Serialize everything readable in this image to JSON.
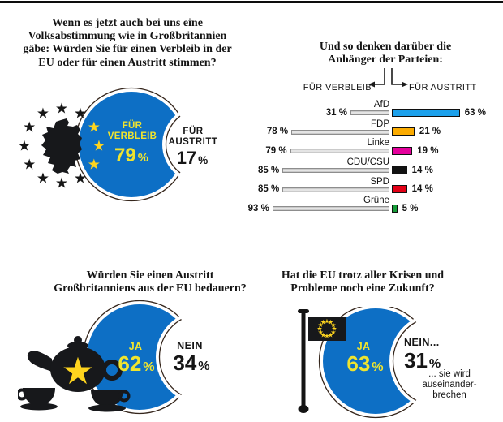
{
  "common": {
    "percent_sign": "%",
    "blue": "#0d6fc5",
    "ring_color": "#35261c",
    "star_yellow": "#fed41e",
    "text_yellow": "#efe42f",
    "ink": "#151515"
  },
  "q1": {
    "question": "Wenn es jetzt auch bei uns eine\nVolksabstimmung wie in Großbritannien\ngäbe: Würden Sie für einen Verbleib in der\nEU oder für einen Austritt stimmen?",
    "stay_label": "FÜR\nVERBLEIB",
    "stay_value": "79",
    "leave_label": "FÜR\nAUSTRITT",
    "leave_value": "17"
  },
  "q2": {
    "title": "Und so denken darüber die\nAnhänger der Parteien:",
    "legend_left": "FÜR VERBLEIB",
    "legend_right": "FÜR AUSTRITT",
    "parties": [
      {
        "name": "AfD",
        "stay": 31,
        "leave": 63,
        "color": "#1ca1ec"
      },
      {
        "name": "FDP",
        "stay": 78,
        "leave": 21,
        "color": "#fbab00"
      },
      {
        "name": "Linke",
        "stay": 79,
        "leave": 19,
        "color": "#e5009c"
      },
      {
        "name": "CDU/CSU",
        "stay": 85,
        "leave": 14,
        "color": "#121212"
      },
      {
        "name": "SPD",
        "stay": 85,
        "leave": 14,
        "color": "#e30016"
      },
      {
        "name": "Grüne",
        "stay": 93,
        "leave": 5,
        "color": "#169c37"
      }
    ]
  },
  "q3": {
    "question": "Würden Sie einen Austritt\nGroßbritanniens aus der EU bedauern?",
    "yes_label": "JA",
    "yes_value": "62",
    "no_label": "NEIN",
    "no_value": "34"
  },
  "q4": {
    "question": "Hat die EU trotz aller Krisen und\nProbleme noch eine Zukunft?",
    "yes_label": "JA",
    "yes_value": "63",
    "no_label": "NEIN...",
    "no_value": "31",
    "no_note": "... sie wird\nauseinander-\nbrechen"
  },
  "chart_data": [
    {
      "type": "pie",
      "title": "Wenn es jetzt auch bei uns eine Volksabstimmung wie in Großbritannien gäbe: Würden Sie für einen Verbleib in der EU oder für einen Austritt stimmen?",
      "slices": [
        {
          "label": "FÜR VERBLEIB",
          "value": 79
        },
        {
          "label": "FÜR AUSTRITT",
          "value": 17
        }
      ],
      "unit": "%"
    },
    {
      "type": "bar",
      "title": "Und so denken darüber die Anhänger der Parteien:",
      "categories": [
        "AfD",
        "FDP",
        "Linke",
        "CDU/CSU",
        "SPD",
        "Grüne"
      ],
      "series": [
        {
          "name": "FÜR VERBLEIB",
          "values": [
            31,
            78,
            79,
            85,
            85,
            93
          ]
        },
        {
          "name": "FÜR AUSTRITT",
          "values": [
            63,
            21,
            19,
            14,
            14,
            5
          ]
        }
      ],
      "unit": "%",
      "orientation": "horizontal-diverging"
    },
    {
      "type": "pie",
      "title": "Würden Sie einen Austritt Großbritanniens aus der EU bedauern?",
      "slices": [
        {
          "label": "JA",
          "value": 62
        },
        {
          "label": "NEIN",
          "value": 34
        }
      ],
      "unit": "%"
    },
    {
      "type": "pie",
      "title": "Hat die EU trotz aller Krisen und Probleme noch eine Zukunft?",
      "slices": [
        {
          "label": "JA",
          "value": 63
        },
        {
          "label": "NEIN... sie wird auseinanderbrechen",
          "value": 31
        }
      ],
      "unit": "%"
    }
  ]
}
